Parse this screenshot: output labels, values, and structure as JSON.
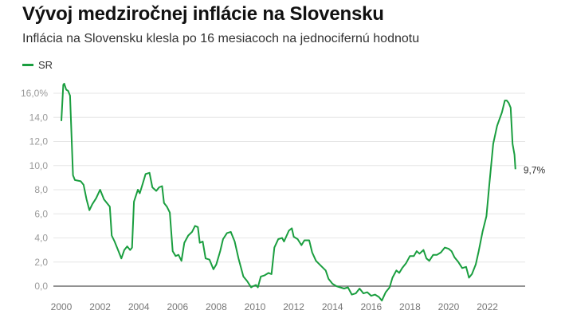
{
  "title": "Vývoj medziročnej inflácie na Slovensku",
  "subtitle": "Inflácia na Slovensku klesla po 16 mesiacoch na jednocifernú hodnotu",
  "legend": {
    "label": "SR",
    "color": "#1a9e3f"
  },
  "chart_data": {
    "type": "line",
    "title": "Vývoj medziročnej inflácie na Slovensku",
    "subtitle": "Inflácia na Slovensku klesla po 16 mesiacoch na jednocifernú hodnotu",
    "xlabel": "",
    "ylabel": "",
    "xlim": [
      2000,
      2023.9
    ],
    "ylim": [
      0,
      16
    ],
    "grid": true,
    "legend_position": "top-left",
    "y_ticks": [
      0,
      2,
      4,
      6,
      8,
      10,
      12,
      14,
      16
    ],
    "y_tick_labels": [
      "0,0",
      "2,0",
      "4,0",
      "6,0",
      "8,0",
      "10,0",
      "12,0",
      "14,0",
      "16,0%"
    ],
    "x_ticks": [
      2000,
      2002,
      2004,
      2006,
      2008,
      2010,
      2012,
      2014,
      2016,
      2018,
      2020,
      2022
    ],
    "x_tick_labels": [
      "2000",
      "2002",
      "2004",
      "2006",
      "2008",
      "2010",
      "2012",
      "2014",
      "2016",
      "2018",
      "2020",
      "2022"
    ],
    "end_label": "9,7%",
    "series": [
      {
        "name": "SR",
        "color": "#1a9e3f",
        "x": [
          2000.0,
          2000.1,
          2000.15,
          2000.25,
          2000.35,
          2000.45,
          2000.6,
          2000.7,
          2001.0,
          2001.15,
          2001.3,
          2001.45,
          2001.6,
          2001.8,
          2002.0,
          2002.2,
          2002.35,
          2002.5,
          2002.6,
          2002.75,
          2002.95,
          2003.1,
          2003.25,
          2003.4,
          2003.55,
          2003.65,
          2003.75,
          2003.95,
          2004.05,
          2004.2,
          2004.35,
          2004.55,
          2004.7,
          2004.9,
          2005.05,
          2005.2,
          2005.3,
          2005.45,
          2005.6,
          2005.75,
          2005.9,
          2006.05,
          2006.2,
          2006.35,
          2006.55,
          2006.75,
          2006.9,
          2007.05,
          2007.15,
          2007.3,
          2007.45,
          2007.65,
          2007.85,
          2008.0,
          2008.2,
          2008.35,
          2008.55,
          2008.75,
          2008.95,
          2009.15,
          2009.4,
          2009.6,
          2009.8,
          2009.9,
          2010.05,
          2010.15,
          2010.3,
          2010.5,
          2010.7,
          2010.85,
          2011.0,
          2011.2,
          2011.4,
          2011.5,
          2011.75,
          2011.9,
          2012.0,
          2012.2,
          2012.4,
          2012.55,
          2012.8,
          2012.95,
          2013.15,
          2013.4,
          2013.65,
          2013.8,
          2014.0,
          2014.2,
          2014.4,
          2014.6,
          2014.8,
          2015.0,
          2015.2,
          2015.4,
          2015.6,
          2015.8,
          2016.0,
          2016.2,
          2016.4,
          2016.55,
          2016.75,
          2016.95,
          2017.1,
          2017.3,
          2017.45,
          2017.6,
          2017.8,
          2018.0,
          2018.2,
          2018.35,
          2018.5,
          2018.7,
          2018.85,
          2019.0,
          2019.2,
          2019.4,
          2019.6,
          2019.8,
          2020.0,
          2020.15,
          2020.3,
          2020.5,
          2020.7,
          2020.9,
          2021.05,
          2021.2,
          2021.4,
          2021.55,
          2021.75,
          2021.95,
          2022.1,
          2022.3,
          2022.5,
          2022.75,
          2022.9,
          2023.0,
          2023.1,
          2023.2,
          2023.3,
          2023.4,
          2023.45
        ],
        "values": [
          13.7,
          16.7,
          16.8,
          16.3,
          16.2,
          15.8,
          9.2,
          8.8,
          8.7,
          8.4,
          7.2,
          6.3,
          6.8,
          7.3,
          8.0,
          7.2,
          6.9,
          6.6,
          4.2,
          3.7,
          2.9,
          2.3,
          3.0,
          3.3,
          3.0,
          3.2,
          7.0,
          8.0,
          7.7,
          8.5,
          9.3,
          9.4,
          8.2,
          7.9,
          8.2,
          8.3,
          6.9,
          6.6,
          6.1,
          2.9,
          2.5,
          2.6,
          2.1,
          3.6,
          4.2,
          4.5,
          5.0,
          4.9,
          3.6,
          3.7,
          2.3,
          2.2,
          1.4,
          1.8,
          2.9,
          3.9,
          4.4,
          4.5,
          3.7,
          2.3,
          0.8,
          0.4,
          -0.1,
          0.0,
          0.1,
          -0.1,
          0.8,
          0.9,
          1.1,
          1.0,
          3.2,
          3.9,
          4.0,
          3.7,
          4.6,
          4.8,
          4.1,
          3.9,
          3.4,
          3.8,
          3.8,
          2.8,
          2.1,
          1.7,
          1.3,
          0.6,
          0.2,
          0.0,
          -0.1,
          -0.2,
          -0.1,
          -0.7,
          -0.6,
          -0.2,
          -0.6,
          -0.5,
          -0.8,
          -0.7,
          -0.9,
          -1.2,
          -0.5,
          -0.1,
          0.7,
          1.3,
          1.1,
          1.5,
          1.9,
          2.5,
          2.5,
          2.9,
          2.7,
          3.0,
          2.3,
          2.1,
          2.6,
          2.6,
          2.8,
          3.2,
          3.1,
          2.9,
          2.4,
          2.0,
          1.5,
          1.6,
          0.7,
          1.0,
          1.8,
          2.9,
          4.5,
          5.8,
          8.4,
          11.8,
          13.3,
          14.4,
          15.4,
          15.4,
          15.2,
          14.8,
          11.8,
          10.9,
          9.7
        ]
      }
    ]
  }
}
